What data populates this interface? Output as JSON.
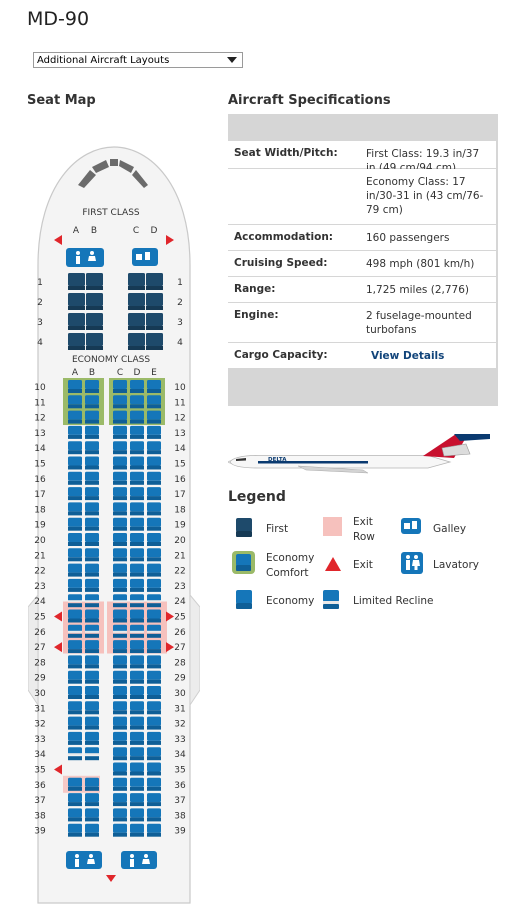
{
  "page": {
    "title": "MD-90"
  },
  "layouts_select": {
    "value": "Additional Aircraft Layouts"
  },
  "seat_map": {
    "heading": "Seat Map",
    "first_class_label": "FIRST CLASS",
    "economy_class_label": "ECONOMY CLASS",
    "first_columns": [
      "A",
      "B",
      "C",
      "D"
    ],
    "economy_columns": [
      "A",
      "B",
      "C",
      "D",
      "E"
    ],
    "first_rows": [
      "1",
      "2",
      "3",
      "4"
    ],
    "economy_rows": [
      "10",
      "11",
      "12",
      "13",
      "14",
      "15",
      "16",
      "17",
      "18",
      "19",
      "20",
      "21",
      "22",
      "23",
      "24",
      "25",
      "26",
      "27",
      "28",
      "29",
      "30",
      "31",
      "32",
      "33",
      "34",
      "35",
      "36",
      "37",
      "38",
      "39"
    ],
    "economy_comfort_rows": [
      "10",
      "11",
      "12"
    ],
    "exit_rows": [
      "25",
      "27"
    ],
    "limited_recline_rows": [
      "24",
      "26"
    ],
    "colors": {
      "first": "#1e4a6b",
      "economy": "#1576b9",
      "comfort": "#9bba68",
      "exit_row": "#f6c1bd",
      "exit": "#e0262b"
    }
  },
  "specs": {
    "heading": "Aircraft Specifications",
    "rows": [
      {
        "label": "Seat Width/Pitch:",
        "value": "First Class: 19.3 in/37 in (49 cm/94 cm)"
      },
      {
        "label": "",
        "value": "Economy Class: 17 in/30-31 in (43 cm/76-79 cm)"
      },
      {
        "label": "Accommodation:",
        "value": "160 passengers"
      },
      {
        "label": "Cruising Speed:",
        "value": "498 mph (801 km/h)"
      },
      {
        "label": "Range:",
        "value": "1,725 miles (2,776)"
      },
      {
        "label": "Engine:",
        "value": "2 fuselage-mounted turbofans"
      },
      {
        "label": "Cargo Capacity:",
        "value": "View Details"
      }
    ]
  },
  "aircraft_image": {
    "livery_text": "DELTA"
  },
  "legend": {
    "heading": "Legend",
    "items": [
      {
        "label": "First",
        "icon": "first-seat-icon"
      },
      {
        "label": "Exit Row",
        "icon": "exit-row-icon"
      },
      {
        "label": "Galley",
        "icon": "galley-icon"
      },
      {
        "label": "Economy Comfort",
        "icon": "economy-comfort-seat-icon"
      },
      {
        "label": "Exit",
        "icon": "exit-icon"
      },
      {
        "label": "Lavatory",
        "icon": "lavatory-icon"
      },
      {
        "label": "Economy",
        "icon": "economy-seat-icon"
      },
      {
        "label": "Limited Recline",
        "icon": "limited-recline-icon"
      }
    ]
  }
}
